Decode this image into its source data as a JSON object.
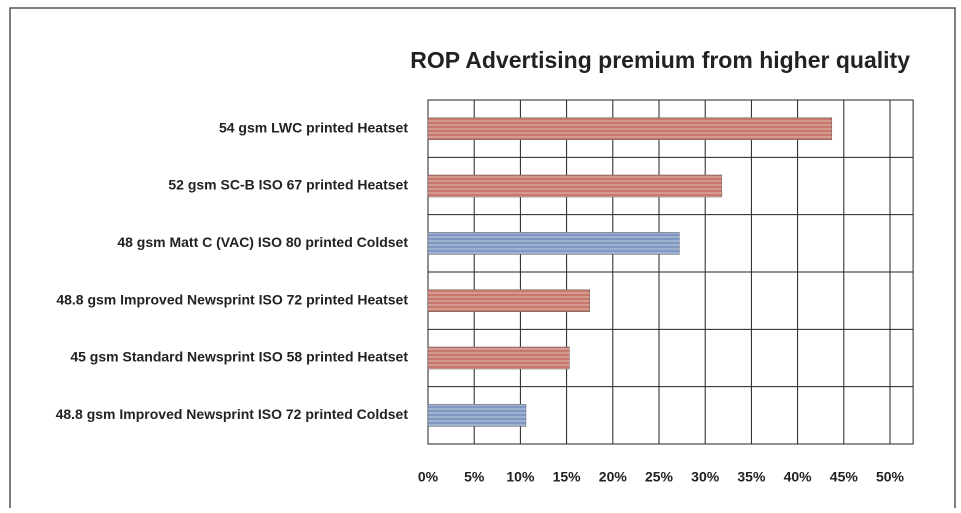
{
  "chart_data": {
    "type": "bar",
    "orientation": "horizontal",
    "title": "ROP Advertising premium from higher quality",
    "categories": [
      "54 gsm LWC printed Heatset",
      "52 gsm SC-B ISO 67 printed Heatset",
      "48 gsm Matt C (VAC) ISO 80 printed Coldset",
      "48.8 gsm Improved Newsprint ISO 72 printed Heatset",
      "45 gsm Standard Newsprint ISO 58 printed Heatset",
      "48.8 gsm Improved Newsprint ISO 72 printed Coldset"
    ],
    "values": [
      43.7,
      31.8,
      27.2,
      17.5,
      15.3,
      10.6
    ],
    "colors": [
      "#c7786a",
      "#c7786a",
      "#7f97c2",
      "#c7786a",
      "#c7786a",
      "#7f97c2"
    ],
    "xlim": [
      0,
      52.5
    ],
    "xticks": [
      {
        "value": 0,
        "label": "0%"
      },
      {
        "value": 5,
        "label": "5%"
      },
      {
        "value": 10,
        "label": "10%"
      },
      {
        "value": 15,
        "label": "15%"
      },
      {
        "value": 20,
        "label": "20%"
      },
      {
        "value": 25,
        "label": "25%"
      },
      {
        "value": 30,
        "label": "30%"
      },
      {
        "value": 35,
        "label": "35%"
      },
      {
        "value": 40,
        "label": "40%"
      },
      {
        "value": 45,
        "label": "45%"
      },
      {
        "value": 50,
        "label": "50%"
      }
    ],
    "grid": true
  }
}
